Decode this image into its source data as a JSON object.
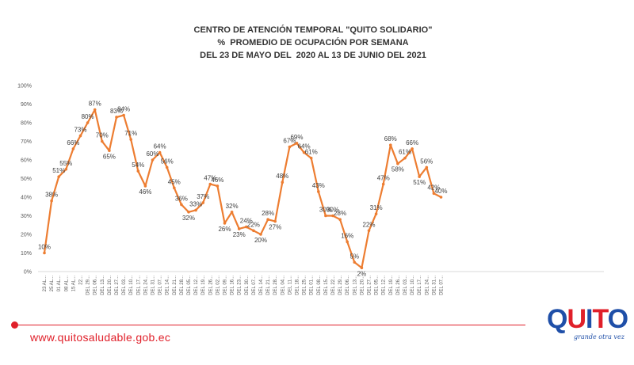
{
  "chart_data": {
    "type": "line",
    "title_lines": [
      "CENTRO DE ATENCIÓN TEMPORAL \"QUITO SOLIDARIO\"",
      "%  PROMEDIO DE OCUPACIÓN POR SEMANA",
      "DEL 23 DE MAYO DEL  2020 AL 13 DE JUNIO DEL 2021"
    ],
    "y_ticks": [
      "0%",
      "10%",
      "20%",
      "30%",
      "40%",
      "50%",
      "60%",
      "70%",
      "80%",
      "90%",
      "100%"
    ],
    "ylim": [
      0,
      100
    ],
    "grid": false,
    "legend": "none",
    "line_color": "#ed7d31",
    "categories": [
      "23 AL...",
      "25 AL...",
      "01 AL...",
      "08 AL...",
      "15 AL...",
      "22...",
      "DEL 29...",
      "DEL 06...",
      "DEL 13...",
      "DEL 20...",
      "DEL 27...",
      "DEL 03...",
      "DEL 10...",
      "DEL 17...",
      "DEL 24...",
      "DEL 31...",
      "DEL 07...",
      "DEL 14...",
      "DEL 21...",
      "DEL 28...",
      "DEL 05...",
      "DEL 12...",
      "DEL 19...",
      "DEL 26...",
      "DEL 02...",
      "DEL 09...",
      "DEL 16...",
      "DEL 23...",
      "DEL 30...",
      "DEL 07...",
      "DEL 14...",
      "DEL 21...",
      "DEL 28...",
      "DEL 04...",
      "DEL 11...",
      "DEL 18...",
      "DEL 25...",
      "DEL 01...",
      "DEL 08...",
      "DEL 15...",
      "DEL 22...",
      "DEL 29...",
      "DEL 06...",
      "DEL 13...",
      "DEL 20...",
      "DEL 27...",
      "DEL 05...",
      "DEL 12...",
      "DEL 19...",
      "DEL 26...",
      "DEL 03...",
      "DEL 10...",
      "DEL 17...",
      "DEL 24...",
      "DEL 31...",
      "DEL 07..."
    ],
    "values": [
      10,
      38,
      51,
      55,
      66,
      73,
      80,
      87,
      70,
      65,
      83,
      84,
      71,
      54,
      46,
      60,
      64,
      56,
      45,
      36,
      32,
      33,
      37,
      47,
      46,
      26,
      32,
      23,
      24,
      22,
      20,
      28,
      27,
      48,
      67,
      69,
      64,
      61,
      43,
      30,
      30,
      28,
      16,
      5,
      2,
      22,
      31,
      47,
      68,
      58,
      61,
      66,
      51,
      56,
      42,
      40
    ],
    "data_labels": [
      "10%",
      "38%",
      "51%",
      "55%",
      "66%",
      "73%",
      "80%",
      "87%",
      "70%",
      "65%",
      "83%",
      "84%",
      "71%",
      "54%",
      "46%",
      "60%",
      "64%",
      "56%",
      "45%",
      "36%",
      "32%",
      "33%",
      "37%",
      "47%",
      "46%",
      "26%",
      "32%",
      "23%",
      "24%",
      "22%",
      "20%",
      "28%",
      "27%",
      "48%",
      "67%",
      "69%",
      "64%",
      "61%",
      "43%",
      "30%",
      "30%",
      "28%",
      "16%",
      "5%",
      "2%",
      "22%",
      "31%",
      "47%",
      "68%",
      "58%",
      "61%",
      "66%",
      "51%",
      "56%",
      "42%",
      "40%"
    ]
  },
  "footer": {
    "url": "www.quitosaludable.gob.ec"
  },
  "logo": {
    "word": "QUITO",
    "tagline": "grande otra vez",
    "colors": {
      "blue": "#1f4fa8",
      "red": "#e0202a"
    }
  }
}
